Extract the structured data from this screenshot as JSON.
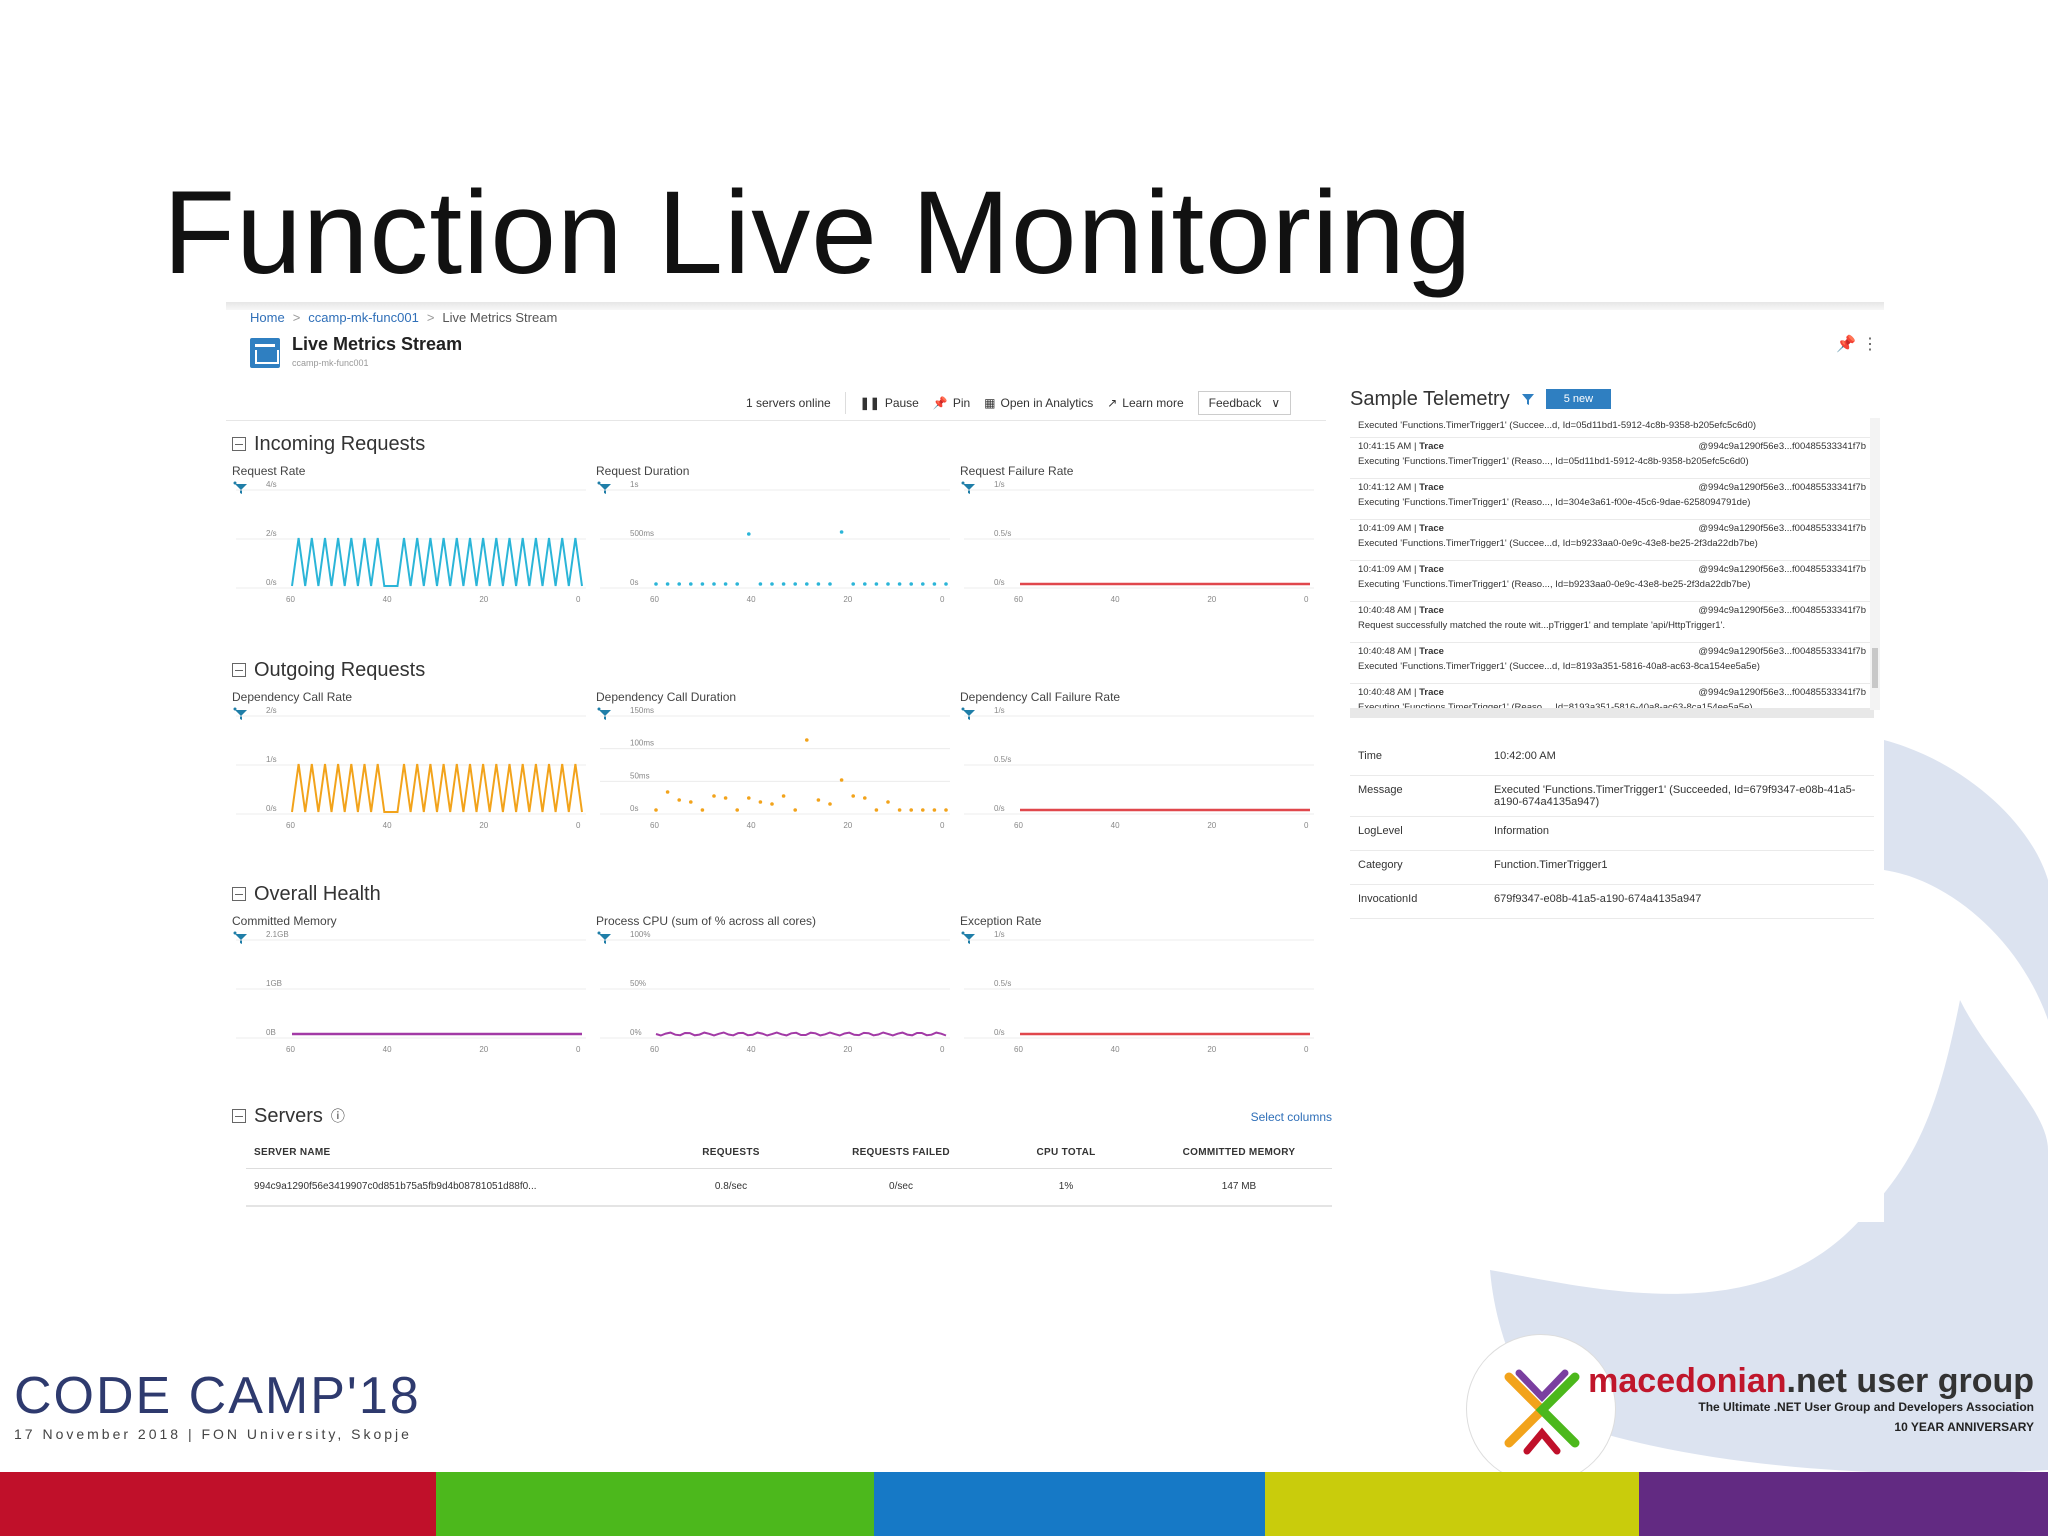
{
  "slide": {
    "title": "Function Live Monitoring"
  },
  "breadcrumb": {
    "home": "Home",
    "resource": "ccamp-mk-func001",
    "current": "Live Metrics Stream"
  },
  "blade": {
    "title": "Live Metrics Stream",
    "subtitle": "ccamp-mk-func001"
  },
  "toolbar": {
    "servers_online": "1 servers online",
    "pause": "Pause",
    "pin": "Pin",
    "open_analytics": "Open in Analytics",
    "learn_more": "Learn more",
    "feedback": "Feedback"
  },
  "sections": {
    "incoming": "Incoming Requests",
    "outgoing": "Outgoing Requests",
    "health": "Overall Health",
    "servers": "Servers"
  },
  "charts": {
    "request_rate": {
      "label": "Request Rate",
      "y_ticks": [
        "4/s",
        "2/s",
        "0/s"
      ],
      "x_ticks": [
        "60",
        "40",
        "20",
        "0"
      ],
      "color": "#2bb5d8"
    },
    "request_duration": {
      "label": "Request Duration",
      "y_ticks": [
        "1s",
        "500ms",
        "0s"
      ],
      "x_ticks": [
        "60",
        "40",
        "20",
        "0"
      ],
      "color": "#2bb5d8"
    },
    "request_failure_rate": {
      "label": "Request Failure Rate",
      "y_ticks": [
        "1/s",
        "0.5/s",
        "0/s"
      ],
      "x_ticks": [
        "60",
        "40",
        "20",
        "0"
      ],
      "color": "#e0474c"
    },
    "dependency_call_rate": {
      "label": "Dependency Call Rate",
      "y_ticks": [
        "2/s",
        "1/s",
        "0/s"
      ],
      "x_ticks": [
        "60",
        "40",
        "20",
        "0"
      ],
      "color": "#f2a31b"
    },
    "dependency_call_duration": {
      "label": "Dependency Call Duration",
      "y_ticks": [
        "150ms",
        "100ms",
        "50ms",
        "0s"
      ],
      "x_ticks": [
        "60",
        "40",
        "20",
        "0"
      ],
      "color": "#f2a31b"
    },
    "dependency_call_failure_rate": {
      "label": "Dependency Call Failure Rate",
      "y_ticks": [
        "1/s",
        "0.5/s",
        "0/s"
      ],
      "x_ticks": [
        "60",
        "40",
        "20",
        "0"
      ],
      "color": "#e0474c"
    },
    "committed_memory": {
      "label": "Committed Memory",
      "y_ticks": [
        "2.1GB",
        "1GB",
        "0B"
      ],
      "x_ticks": [
        "60",
        "40",
        "20",
        "0"
      ],
      "color": "#a23aa6"
    },
    "process_cpu": {
      "label": "Process CPU (sum of % across all cores)",
      "y_ticks": [
        "100%",
        "50%",
        "0%"
      ],
      "x_ticks": [
        "60",
        "40",
        "20",
        "0"
      ],
      "color": "#a23aa6"
    },
    "exception_rate": {
      "label": "Exception Rate",
      "y_ticks": [
        "1/s",
        "0.5/s",
        "0/s"
      ],
      "x_ticks": [
        "60",
        "40",
        "20",
        "0"
      ],
      "color": "#e0474c"
    }
  },
  "servers": {
    "select_columns": "Select columns",
    "headers": [
      "SERVER NAME",
      "REQUESTS",
      "REQUESTS FAILED",
      "CPU TOTAL",
      "COMMITTED MEMORY"
    ],
    "rows": [
      [
        "994c9a1290f56e3419907c0d851b75a5fb9d4b08781051d88f0...",
        "0.8/sec",
        "0/sec",
        "1%",
        "147 MB"
      ]
    ]
  },
  "telemetry": {
    "title": "Sample Telemetry",
    "badge": "5 new",
    "first_line": "Executed 'Functions.TimerTrigger1' (Succee...d, Id=05d11bd1-5912-4c8b-9358-b205efc5c6d0)",
    "items": [
      {
        "time": "10:41:15 AM",
        "type": "Trace",
        "id": "@994c9a1290f56e3...f00485533341f7b",
        "msg": "Executing 'Functions.TimerTrigger1' (Reaso..., Id=05d11bd1-5912-4c8b-9358-b205efc5c6d0)"
      },
      {
        "time": "10:41:12 AM",
        "type": "Trace",
        "id": "@994c9a1290f56e3...f00485533341f7b",
        "msg": "Executing 'Functions.TimerTrigger1' (Reaso..., Id=304e3a61-f00e-45c6-9dae-6258094791de)"
      },
      {
        "time": "10:41:09 AM",
        "type": "Trace",
        "id": "@994c9a1290f56e3...f00485533341f7b",
        "msg": "Executed 'Functions.TimerTrigger1' (Succee...d, Id=b9233aa0-0e9c-43e8-be25-2f3da22db7be)"
      },
      {
        "time": "10:41:09 AM",
        "type": "Trace",
        "id": "@994c9a1290f56e3...f00485533341f7b",
        "msg": "Executing 'Functions.TimerTrigger1' (Reaso..., Id=b9233aa0-0e9c-43e8-be25-2f3da22db7be)"
      },
      {
        "time": "10:40:48 AM",
        "type": "Trace",
        "id": "@994c9a1290f56e3...f00485533341f7b",
        "msg": "Request successfully matched the route wit...pTrigger1' and template 'api/HttpTrigger1'."
      },
      {
        "time": "10:40:48 AM",
        "type": "Trace",
        "id": "@994c9a1290f56e3...f00485533341f7b",
        "msg": "Executed 'Functions.TimerTrigger1' (Succee...d, Id=8193a351-5816-40a8-ac63-8ca154ee5a5e)"
      },
      {
        "time": "10:40:48 AM",
        "type": "Trace",
        "id": "@994c9a1290f56e3...f00485533341f7b",
        "msg": "Executing 'Functions.TimerTrigger1' (Reaso..., Id=8193a351-5816-40a8-ac63-8ca154ee5a5e)"
      }
    ],
    "details": [
      {
        "key": "Time",
        "value": "10:42:00 AM"
      },
      {
        "key": "Message",
        "value": "Executed 'Functions.TimerTrigger1' (Succeeded, Id=679f9347-e08b-41a5-a190-674a4135a947)"
      },
      {
        "key": "LogLevel",
        "value": "Information"
      },
      {
        "key": "Category",
        "value": "Function.TimerTrigger1"
      },
      {
        "key": "InvocationId",
        "value": "679f9347-e08b-41a5-a190-674a4135a947"
      }
    ]
  },
  "footer": {
    "codecamp_title": "CODE CAMP",
    "codecamp_year": "'18",
    "codecamp_sub": "17 November 2018 | FON University, Skopje",
    "mug_title_red": "macedonian",
    "mug_title_dark": ".net user group",
    "mug_tagline": "The Ultimate .NET User Group and Developers Association",
    "mug_anniversary": "10 YEAR ANNIVERSARY",
    "bar_colors": [
      "#c0102a",
      "#4cb81c",
      "#1679c6",
      "#c9cc0c",
      "#622a82"
    ]
  }
}
